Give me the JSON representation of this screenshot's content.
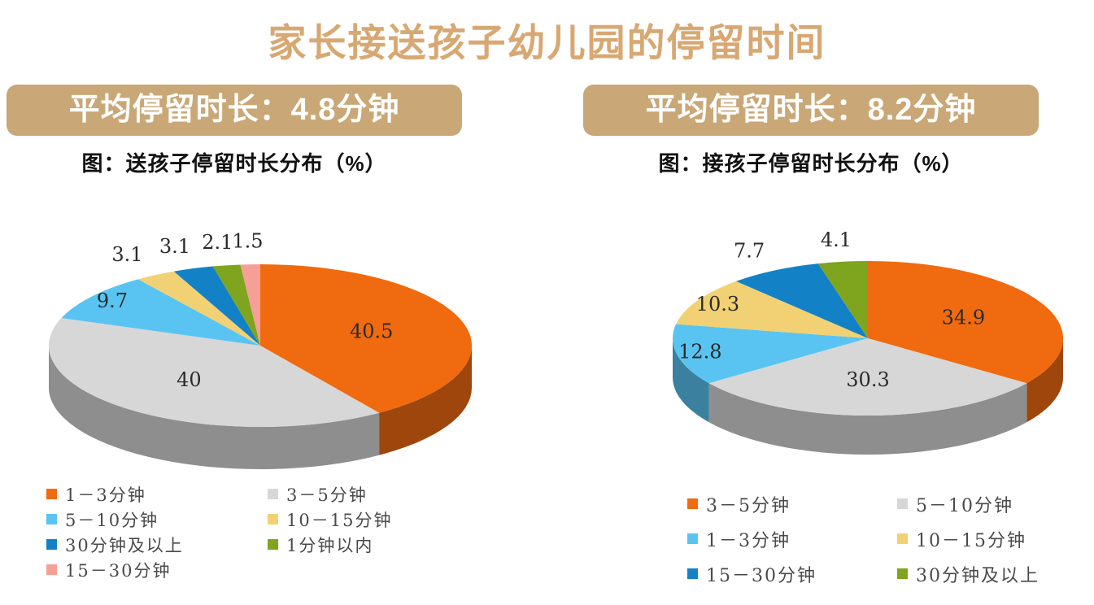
{
  "page_title": "家长接送孩子幼儿园的停留时间",
  "colors": {
    "title_text": "#D8A873",
    "banner_bg": "#C9A776",
    "banner_text": "#FFFFFF",
    "caption_text": "#111111",
    "pie_label_text": "#2B2B2B",
    "legend_text": "#4A4A4A"
  },
  "panels": [
    {
      "banner": "平均停留时长：4.8分钟",
      "caption": "图：送孩子停留时长分布（%）"
    },
    {
      "banner": "平均停留时长：8.2分钟",
      "caption": "图：接孩子停留时长分布（%）"
    }
  ],
  "chart_data": [
    {
      "type": "pie",
      "style": "3d",
      "title": "图：送孩子停留时长分布（%）",
      "average_label": "平均停留时长：4.8分钟",
      "average_minutes": 4.8,
      "unit": "%",
      "start_angle": "top",
      "direction": "clockwise",
      "labels": [
        "1－3分钟",
        "3－5分钟",
        "5－10分钟",
        "10－15分钟",
        "30分钟及以上",
        "1分钟以内",
        "15－30分钟"
      ],
      "values": [
        40.5,
        40,
        9.7,
        3.1,
        3.1,
        2.1,
        1.5
      ],
      "colors": [
        "#F06A10",
        "#D7D7D7",
        "#59C4F1",
        "#F1D173",
        "#1381C6",
        "#7FA41E",
        "#F5A097"
      ],
      "legend_position": "bottom",
      "legend_columns": 2
    },
    {
      "type": "pie",
      "style": "3d",
      "title": "图：接孩子停留时长分布（%）",
      "average_label": "平均停留时长：8.2分钟",
      "average_minutes": 8.2,
      "unit": "%",
      "start_angle": "top",
      "direction": "clockwise",
      "labels": [
        "3－5分钟",
        "5－10分钟",
        "1－3分钟",
        "10－15分钟",
        "15－30分钟",
        "30分钟及以上"
      ],
      "values": [
        34.9,
        30.3,
        12.8,
        10.3,
        7.7,
        4.1
      ],
      "colors": [
        "#F06A10",
        "#D7D7D7",
        "#59C4F1",
        "#F1D173",
        "#1381C6",
        "#7FA41E"
      ],
      "legend_position": "bottom",
      "legend_columns": 2
    }
  ]
}
